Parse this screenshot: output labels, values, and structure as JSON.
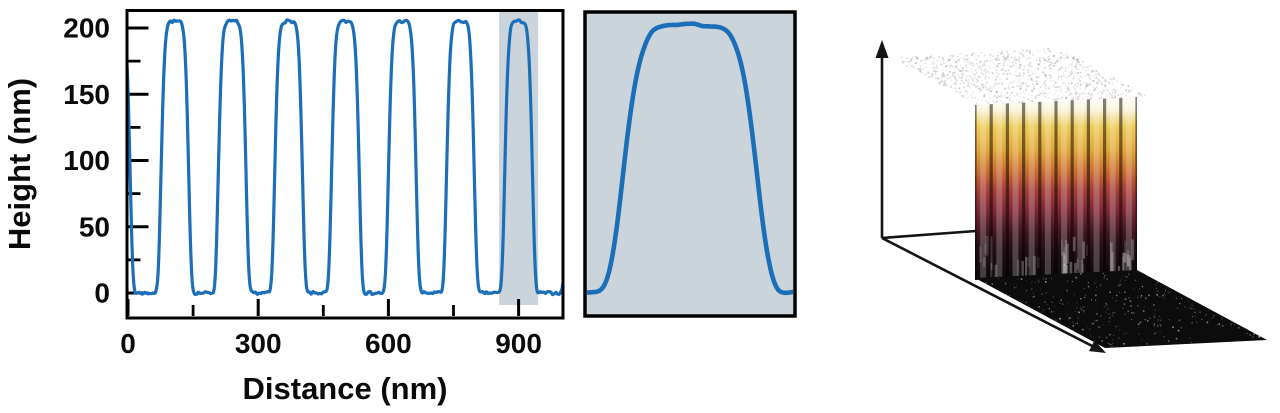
{
  "figure": {
    "background": "#ffffff",
    "description": "AFM characterization figure: height profile of a periodic grating, zoom of one highlighted peak, and 3D AFM topography render"
  },
  "chart_data": [
    {
      "type": "line",
      "panel": "height-profile",
      "xlabel": "Distance (nm)",
      "ylabel": "Height (nm)",
      "x_ticks": [
        0,
        300,
        600,
        900
      ],
      "x_tick_labels": [
        "0",
        "300",
        "600",
        "900"
      ],
      "x_minor_ticks": [
        150,
        450,
        750
      ],
      "y_ticks": [
        200,
        150,
        100,
        50,
        0
      ],
      "y_tick_labels": [
        "200",
        "150",
        "100",
        "50",
        "0"
      ],
      "y_minor_ticks": [
        25,
        75,
        125,
        175
      ],
      "xlim": [
        -2,
        1003
      ],
      "ylim": [
        -19,
        213
      ],
      "grid": false,
      "series": [
        {
          "name": "height profile",
          "color": "#1b6fb8",
          "line_width": 3.2,
          "baseline_nm": 0,
          "peak_height_nm": 205,
          "peak_centers_nm": [
            -27,
            108,
            240,
            370,
            501,
            632,
            766,
            900,
            1042
          ],
          "peak_apexes": [
            {
              "x": 108,
              "y": 205
            },
            {
              "x": 240,
              "y": 205
            },
            {
              "x": 370,
              "y": 205
            },
            {
              "x": 501,
              "y": 205
            },
            {
              "x": 632,
              "y": 205
            },
            {
              "x": 766,
              "y": 205
            },
            {
              "x": 900,
              "y": 205
            }
          ],
          "peak_period_nm": 132,
          "peak_halfwidth_nm": 33,
          "peak_edge_exponent": 6,
          "noise_amp_nm": 1.2
        }
      ],
      "highlight_region": {
        "x0": 855,
        "x1": 945,
        "color": "#ccd4db"
      }
    },
    {
      "type": "line",
      "panel": "zoom-of-highlighted-peak",
      "background": "#ccd4db",
      "border_color": "#000000",
      "xlim": [
        850,
        950
      ],
      "ylim": [
        -20,
        212
      ],
      "line_width": 4.6,
      "series_ref": 0,
      "peak_center_nm": 900,
      "peak_height_nm": 205
    },
    {
      "type": "3d-surface",
      "panel": "afm-3d-render",
      "description": "3D AFM topography: flat upper terrace, grating sidewall with vertical ridges, flat lower terrace",
      "axis_color": "#141414",
      "upper_terrace_color": "#ffffff",
      "upper_speckle_color": "#8f8f8f",
      "lower_terrace_color": "#0c0c0c",
      "lower_speckle_color": "#e8e8e8",
      "num_ridges": 10,
      "wall_gradient_stops": [
        [
          0.0,
          "#ffffff"
        ],
        [
          0.07,
          "#faf3da"
        ],
        [
          0.16,
          "#eecb58"
        ],
        [
          0.28,
          "#e2aa3c"
        ],
        [
          0.4,
          "#cd7030"
        ],
        [
          0.5,
          "#a84138"
        ],
        [
          0.62,
          "#7c2836"
        ],
        [
          0.72,
          "#4a1824"
        ],
        [
          0.82,
          "#241016"
        ],
        [
          1.0,
          "#0b0908"
        ]
      ]
    }
  ]
}
